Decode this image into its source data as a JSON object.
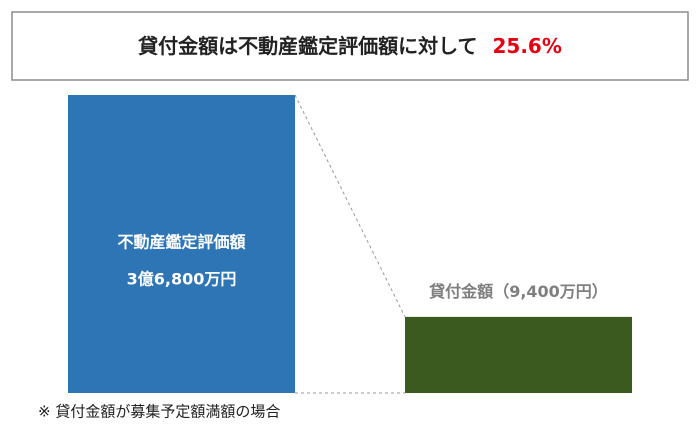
{
  "chart_data": {
    "type": "bar",
    "title": "貸付金額は不動産鑑定評価額に対して",
    "highlight": "25.6%",
    "categories": [
      "不動産鑑定評価額",
      "貸付金額"
    ],
    "values": [
      36800,
      9400
    ],
    "value_labels": [
      "3億6,800万円",
      "（9,400万円）"
    ],
    "colors": [
      "#2e75b6",
      "#3b5a1f"
    ],
    "note": "※ 貸付金額が募集予定額満額の場合"
  }
}
